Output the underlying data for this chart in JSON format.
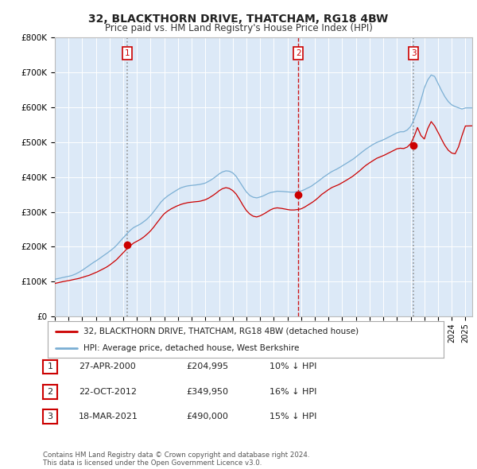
{
  "title": "32, BLACKTHORN DRIVE, THATCHAM, RG18 4BW",
  "subtitle": "Price paid vs. HM Land Registry's House Price Index (HPI)",
  "bg_color": "#dce9f7",
  "outer_bg_color": "#ffffff",
  "red_line_color": "#cc0000",
  "blue_line_color": "#7bafd4",
  "ylim": [
    0,
    800000
  ],
  "yticks": [
    0,
    100000,
    200000,
    300000,
    400000,
    500000,
    600000,
    700000,
    800000
  ],
  "ytick_labels": [
    "£0",
    "£100K",
    "£200K",
    "£300K",
    "£400K",
    "£500K",
    "£600K",
    "£700K",
    "£800K"
  ],
  "xlim_start": 1995.0,
  "xlim_end": 2025.5,
  "xtick_years": [
    1995,
    1996,
    1997,
    1998,
    1999,
    2000,
    2001,
    2002,
    2003,
    2004,
    2005,
    2006,
    2007,
    2008,
    2009,
    2010,
    2011,
    2012,
    2013,
    2014,
    2015,
    2016,
    2017,
    2018,
    2019,
    2020,
    2021,
    2022,
    2023,
    2024,
    2025
  ],
  "sale_dates": [
    2000.29,
    2012.8,
    2021.21
  ],
  "sale_prices": [
    204995,
    349950,
    490000
  ],
  "sale_labels": [
    "1",
    "2",
    "3"
  ],
  "vline_styles": [
    {
      "color": "#888888",
      "linestyle": ":",
      "linewidth": 1.2
    },
    {
      "color": "#cc0000",
      "linestyle": "--",
      "linewidth": 1.0
    },
    {
      "color": "#888888",
      "linestyle": ":",
      "linewidth": 1.2
    }
  ],
  "legend_red_label": "32, BLACKTHORN DRIVE, THATCHAM, RG18 4BW (detached house)",
  "legend_blue_label": "HPI: Average price, detached house, West Berkshire",
  "table_rows": [
    {
      "num": "1",
      "date": "27-APR-2000",
      "price": "£204,995",
      "hpi": "10% ↓ HPI"
    },
    {
      "num": "2",
      "date": "22-OCT-2012",
      "price": "£349,950",
      "hpi": "16% ↓ HPI"
    },
    {
      "num": "3",
      "date": "18-MAR-2021",
      "price": "£490,000",
      "hpi": "15% ↓ HPI"
    }
  ],
  "footer_line1": "Contains HM Land Registry data © Crown copyright and database right 2024.",
  "footer_line2": "This data is licensed under the Open Government Licence v3.0."
}
